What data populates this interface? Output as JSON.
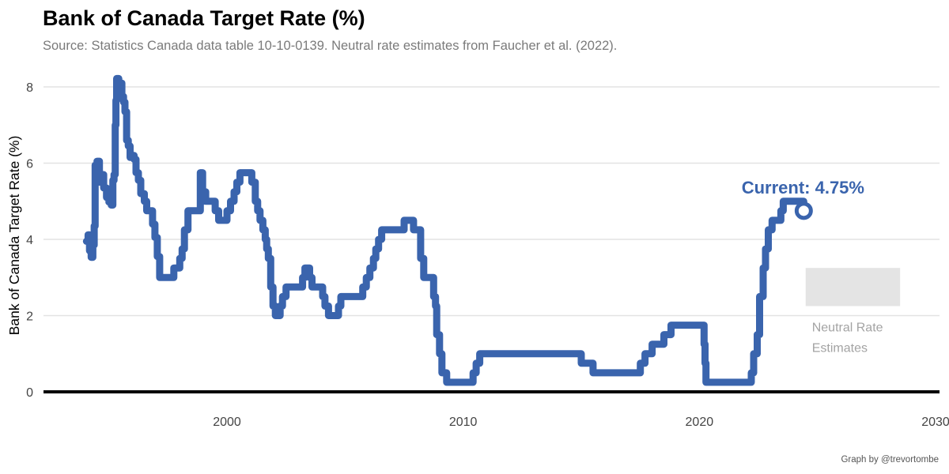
{
  "title": "Bank of Canada Target Rate (%)",
  "subtitle": "Source: Statistics Canada data table 10-10-0139. Neutral rate estimates from Faucher et al. (2022).",
  "caption": "Graph by @trevortombe",
  "colors": {
    "line": "#3a64ad",
    "grid": "#e3e3e3",
    "zero_line": "#000000",
    "neutral_band": "#e4e4e4",
    "neutral_text": "#a3a3a3",
    "current_label": "#3a64ad"
  },
  "chart_data": {
    "type": "line",
    "title": "Bank of Canada Target Rate (%)",
    "xlabel": "",
    "ylabel": "Bank of Canada Target Rate (%)",
    "xlim": [
      1993,
      2030
    ],
    "ylim": [
      0,
      8.5
    ],
    "x_ticks": [
      2000,
      2010,
      2020,
      2030
    ],
    "x_tick_labels": [
      "2000",
      "2010",
      "2020",
      "2030"
    ],
    "y_ticks": [
      0,
      2,
      4,
      6,
      8
    ],
    "y_tick_labels": [
      "0",
      "2",
      "4",
      "6",
      "8"
    ],
    "grid": "horizontal",
    "interpolation": "step",
    "series": [
      {
        "name": "",
        "points": [
          [
            1994.05,
            3.95
          ],
          [
            1994.12,
            4.12
          ],
          [
            1994.18,
            3.7
          ],
          [
            1994.25,
            3.53
          ],
          [
            1994.32,
            3.85
          ],
          [
            1994.38,
            4.35
          ],
          [
            1994.42,
            5.95
          ],
          [
            1994.5,
            6.05
          ],
          [
            1994.6,
            5.5
          ],
          [
            1994.68,
            5.7
          ],
          [
            1994.78,
            5.35
          ],
          [
            1994.9,
            5.1
          ],
          [
            1995.0,
            4.98
          ],
          [
            1995.1,
            4.9
          ],
          [
            1995.17,
            5.55
          ],
          [
            1995.22,
            5.7
          ],
          [
            1995.27,
            7.0
          ],
          [
            1995.3,
            7.65
          ],
          [
            1995.33,
            8.22
          ],
          [
            1995.42,
            7.75
          ],
          [
            1995.5,
            8.1
          ],
          [
            1995.55,
            7.75
          ],
          [
            1995.62,
            7.6
          ],
          [
            1995.68,
            7.35
          ],
          [
            1995.75,
            6.6
          ],
          [
            1995.82,
            6.45
          ],
          [
            1995.9,
            6.15
          ],
          [
            1996.0,
            6.2
          ],
          [
            1996.07,
            6.1
          ],
          [
            1996.15,
            5.75
          ],
          [
            1996.25,
            5.55
          ],
          [
            1996.35,
            5.2
          ],
          [
            1996.5,
            5.0
          ],
          [
            1996.6,
            4.75
          ],
          [
            1996.85,
            4.4
          ],
          [
            1996.95,
            4.05
          ],
          [
            1997.05,
            3.55
          ],
          [
            1997.15,
            3.0
          ],
          [
            1997.75,
            3.25
          ],
          [
            1998.0,
            3.5
          ],
          [
            1998.1,
            3.75
          ],
          [
            1998.2,
            4.25
          ],
          [
            1998.35,
            4.75
          ],
          [
            1998.87,
            5.75
          ],
          [
            1998.97,
            5.25
          ],
          [
            1999.1,
            5.0
          ],
          [
            1999.5,
            4.75
          ],
          [
            1999.65,
            4.5
          ],
          [
            2000.0,
            4.75
          ],
          [
            2000.15,
            5.0
          ],
          [
            2000.3,
            5.25
          ],
          [
            2000.42,
            5.5
          ],
          [
            2000.55,
            5.75
          ],
          [
            2001.05,
            5.5
          ],
          [
            2001.2,
            5.0
          ],
          [
            2001.3,
            4.75
          ],
          [
            2001.4,
            4.5
          ],
          [
            2001.52,
            4.25
          ],
          [
            2001.62,
            4.0
          ],
          [
            2001.68,
            3.75
          ],
          [
            2001.75,
            3.5
          ],
          [
            2001.85,
            2.75
          ],
          [
            2001.95,
            2.25
          ],
          [
            2002.05,
            2.0
          ],
          [
            2002.25,
            2.25
          ],
          [
            2002.35,
            2.5
          ],
          [
            2002.5,
            2.75
          ],
          [
            2003.2,
            3.0
          ],
          [
            2003.3,
            3.25
          ],
          [
            2003.5,
            3.0
          ],
          [
            2003.6,
            2.75
          ],
          [
            2004.05,
            2.5
          ],
          [
            2004.15,
            2.25
          ],
          [
            2004.3,
            2.0
          ],
          [
            2004.72,
            2.25
          ],
          [
            2004.82,
            2.5
          ],
          [
            2005.75,
            2.75
          ],
          [
            2005.9,
            3.0
          ],
          [
            2006.05,
            3.25
          ],
          [
            2006.2,
            3.5
          ],
          [
            2006.3,
            3.75
          ],
          [
            2006.42,
            4.0
          ],
          [
            2006.55,
            4.25
          ],
          [
            2007.5,
            4.5
          ],
          [
            2007.9,
            4.25
          ],
          [
            2008.2,
            3.5
          ],
          [
            2008.33,
            3.0
          ],
          [
            2008.75,
            2.5
          ],
          [
            2008.83,
            2.25
          ],
          [
            2008.88,
            1.5
          ],
          [
            2009.0,
            1.0
          ],
          [
            2009.1,
            0.5
          ],
          [
            2009.3,
            0.25
          ],
          [
            2010.42,
            0.5
          ],
          [
            2010.55,
            0.75
          ],
          [
            2010.7,
            1.0
          ],
          [
            2015.0,
            0.75
          ],
          [
            2015.5,
            0.5
          ],
          [
            2017.5,
            0.75
          ],
          [
            2017.7,
            1.0
          ],
          [
            2018.0,
            1.25
          ],
          [
            2018.5,
            1.5
          ],
          [
            2018.8,
            1.75
          ],
          [
            2020.2,
            1.25
          ],
          [
            2020.24,
            0.75
          ],
          [
            2020.28,
            0.25
          ],
          [
            2022.2,
            0.5
          ],
          [
            2022.3,
            1.0
          ],
          [
            2022.45,
            1.5
          ],
          [
            2022.55,
            2.5
          ],
          [
            2022.7,
            3.25
          ],
          [
            2022.8,
            3.75
          ],
          [
            2022.92,
            4.25
          ],
          [
            2023.08,
            4.5
          ],
          [
            2023.45,
            4.75
          ],
          [
            2023.55,
            5.0
          ],
          [
            2024.42,
            4.75
          ]
        ]
      }
    ],
    "current_point": {
      "x": 2024.42,
      "y": 4.75,
      "label": "Current: 4.75%"
    },
    "neutral_band": {
      "x": [
        2024.5,
        2028.5
      ],
      "y": [
        2.25,
        3.25
      ],
      "label_lines": [
        "Neutral Rate",
        "Estimates"
      ]
    }
  }
}
